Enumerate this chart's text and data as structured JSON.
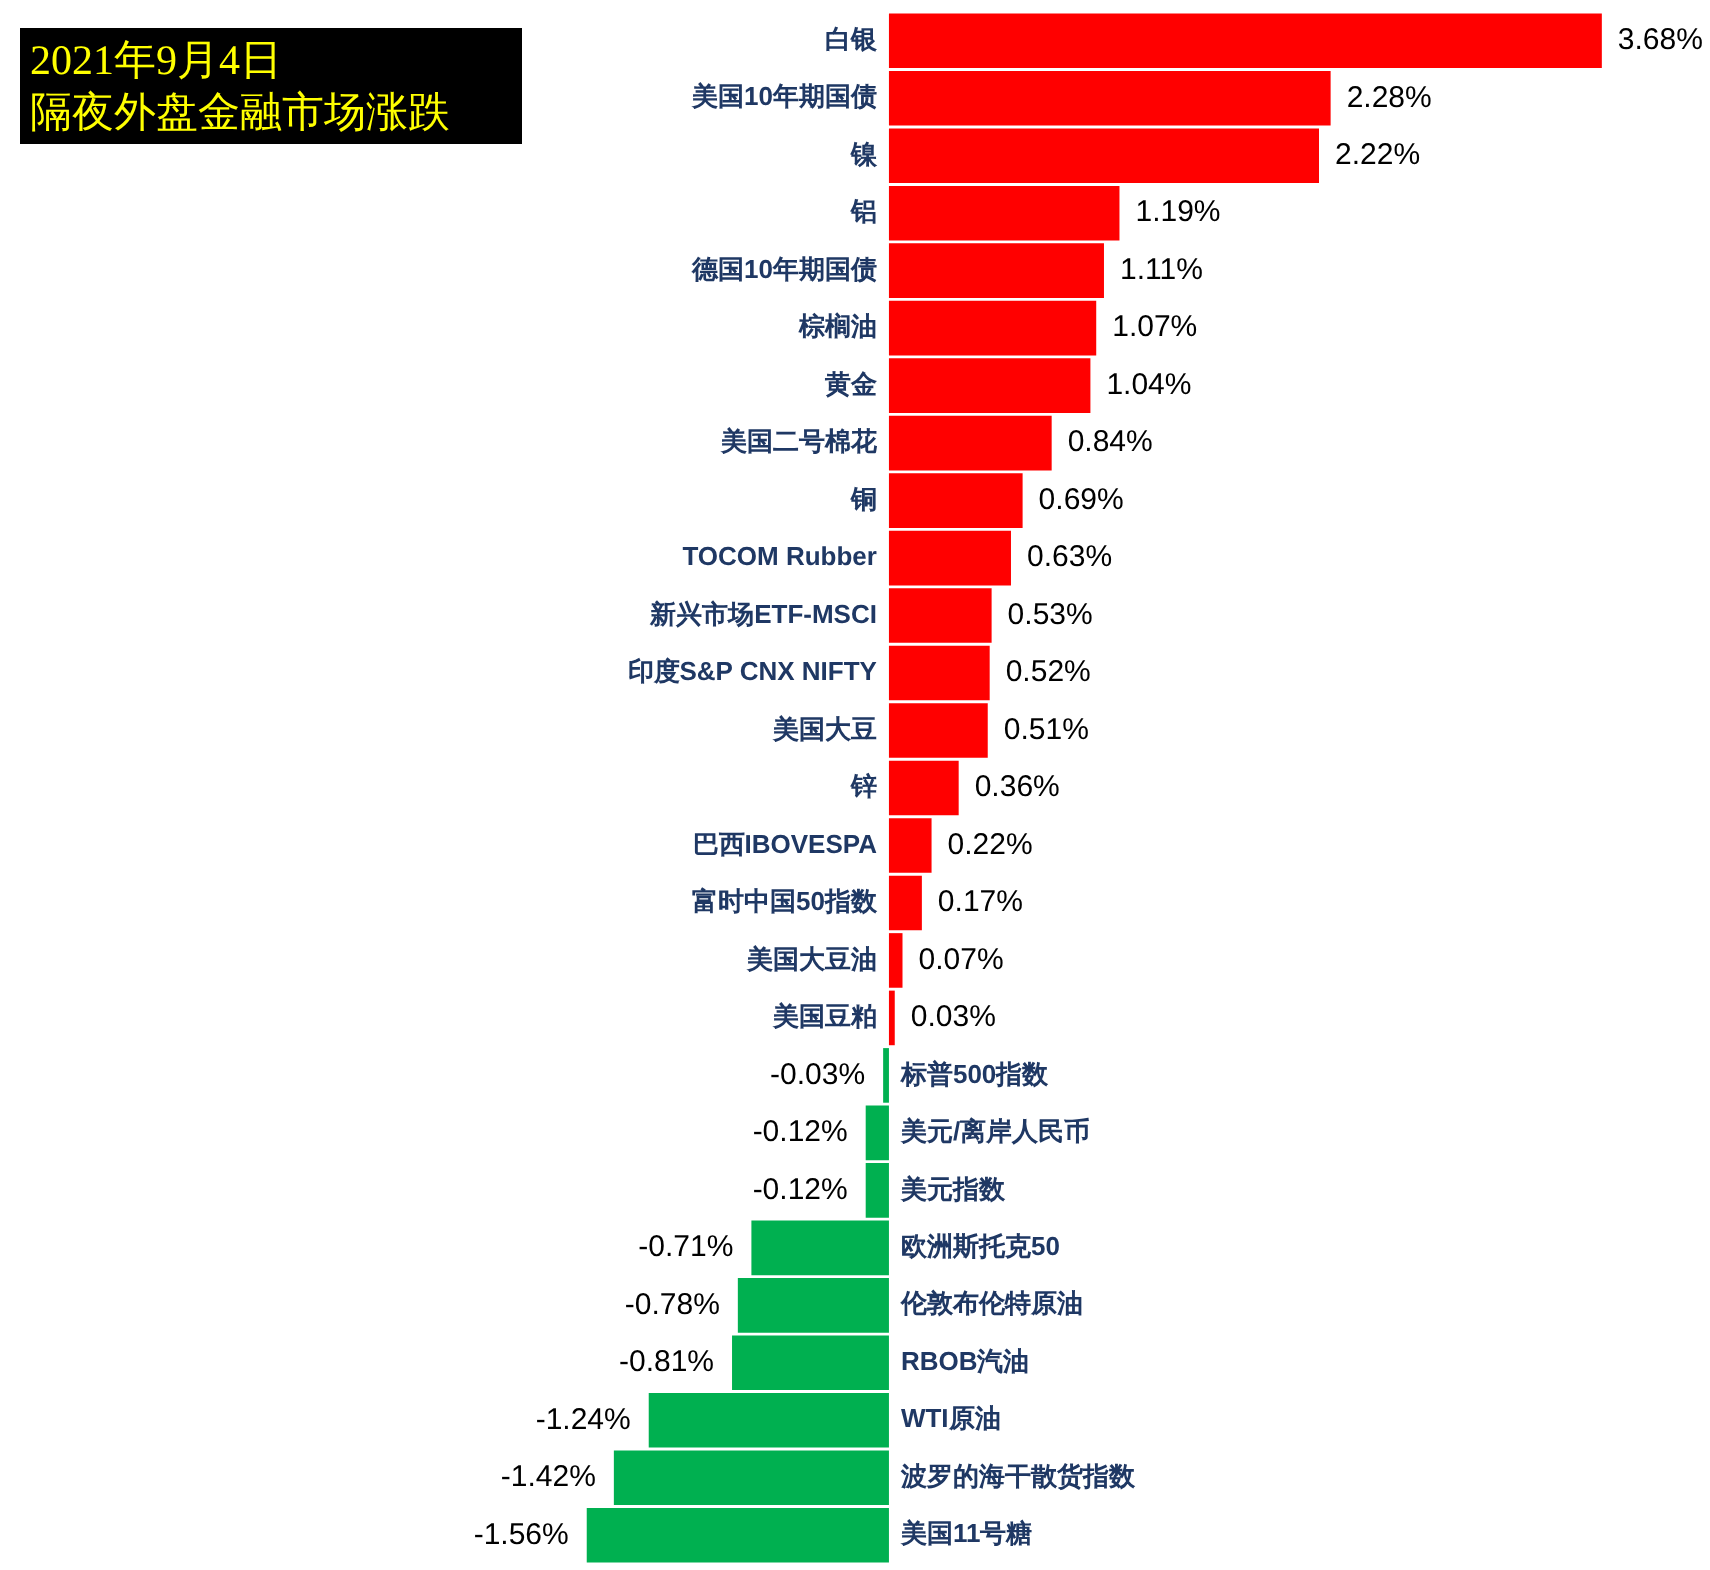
{
  "chart_data": {
    "type": "bar",
    "orientation": "horizontal",
    "title": "2021年9月4日",
    "subtitle": "隔夜外盘金融市场涨跌",
    "categories": [
      "白银",
      "美国10年期国债",
      "镍",
      "铝",
      "德国10年期国债",
      "棕榈油",
      "黄金",
      "美国二号棉花",
      "铜",
      "TOCOM Rubber",
      "新兴市场ETF-MSCI",
      "印度S&P CNX NIFTY",
      "美国大豆",
      "锌",
      "巴西IBOVESPA",
      "富时中国50指数",
      "美国大豆油",
      "美国豆粕",
      "标普500指数",
      "美元/离岸人民币",
      "美元指数",
      "欧洲斯托克50",
      "伦敦布伦特原油",
      "RBOB汽油",
      "WTI原油",
      "波罗的海干散货指数",
      "美国11号糖"
    ],
    "values": [
      3.68,
      2.28,
      2.22,
      1.19,
      1.11,
      1.07,
      1.04,
      0.84,
      0.69,
      0.63,
      0.53,
      0.52,
      0.51,
      0.36,
      0.22,
      0.17,
      0.07,
      0.03,
      -0.03,
      -0.12,
      -0.12,
      -0.71,
      -0.78,
      -0.81,
      -1.24,
      -1.42,
      -1.56
    ],
    "colors": [
      "#ff0000",
      "#ff0000",
      "#ff0000",
      "#ff0000",
      "#ff0000",
      "#ff0000",
      "#ff0000",
      "#ff0000",
      "#ff0000",
      "#ff0000",
      "#ff0000",
      "#ff0000",
      "#ff0000",
      "#ff0000",
      "#ff0000",
      "#ff0000",
      "#ff0000",
      "#ff0000",
      "#00b050",
      "#00b050",
      "#00b050",
      "#00b050",
      "#00b050",
      "#00b050",
      "#00b050",
      "#00b050",
      "#00b050"
    ],
    "value_labels": [
      "3.68%",
      "2.28%",
      "2.22%",
      "1.19%",
      "1.11%",
      "1.07%",
      "1.04%",
      "0.84%",
      "0.69%",
      "0.63%",
      "0.53%",
      "0.52%",
      "0.51%",
      "0.36%",
      "0.22%",
      "0.17%",
      "0.07%",
      "0.03%",
      "-0.03%",
      "-0.12%",
      "-0.12%",
      "-0.71%",
      "-0.78%",
      "-0.81%",
      "-1.24%",
      "-1.42%",
      "-1.56%"
    ],
    "tick_labels": "y"
  }
}
